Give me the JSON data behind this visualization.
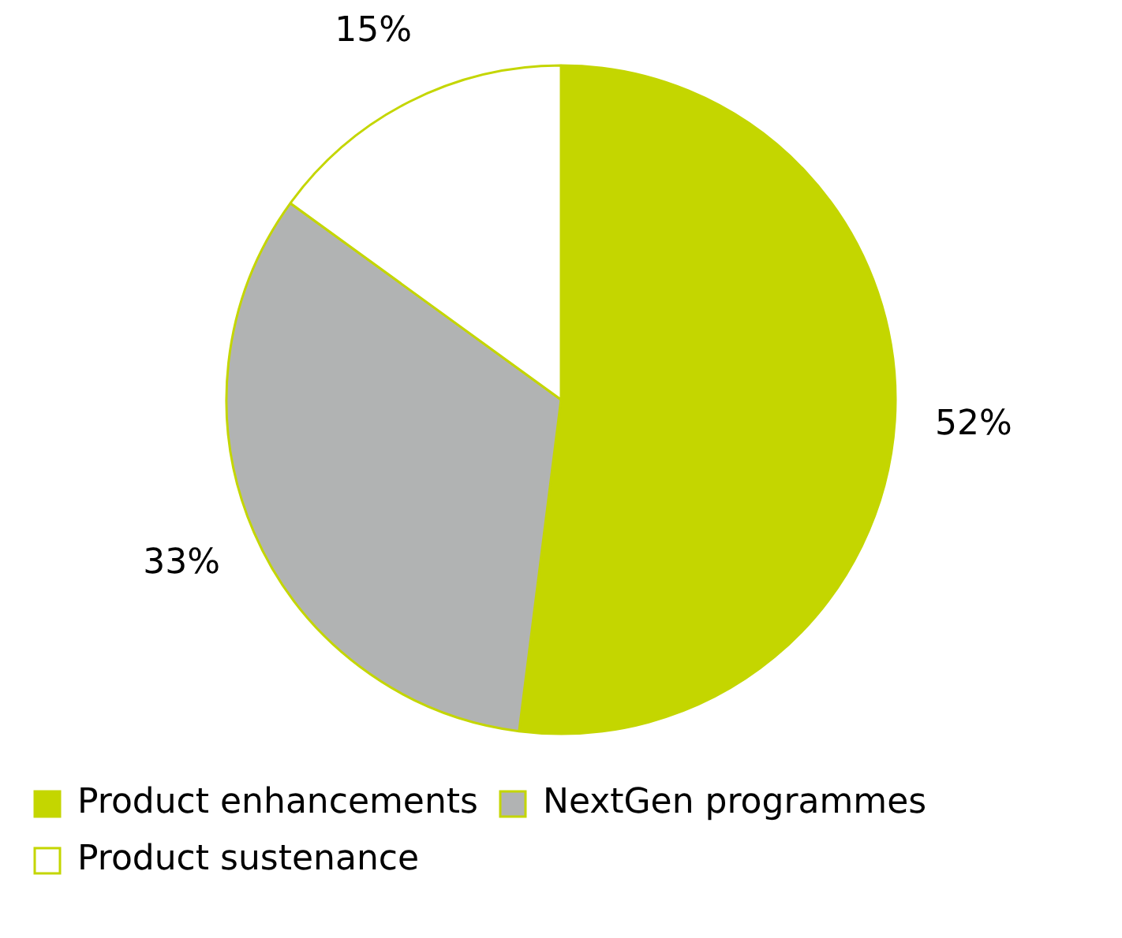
{
  "chart_data": {
    "type": "pie",
    "categories": [
      "Product enhancements",
      "NextGen programmes",
      "Product sustenance"
    ],
    "values": [
      52,
      33,
      15
    ],
    "colors": [
      "#c4d600",
      "#b1b3b3",
      "#ffffff"
    ],
    "value_labels": [
      "52%",
      "33%",
      "15%"
    ],
    "legend": "bottom"
  }
}
